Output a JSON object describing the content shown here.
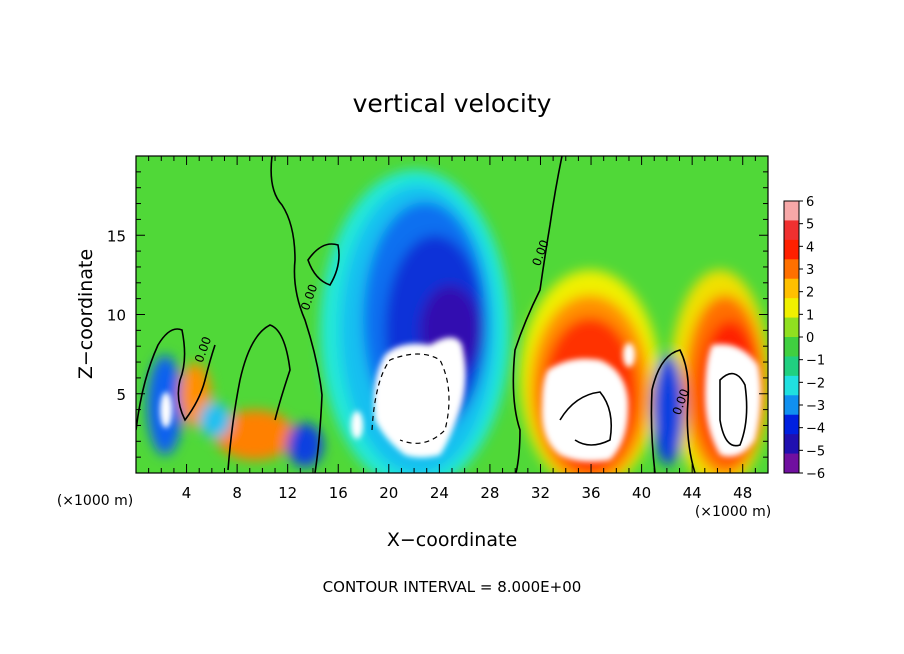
{
  "chart_data": {
    "type": "heatmap",
    "title": "vertical velocity",
    "xlabel": "X−coordinate",
    "ylabel": "Z−coordinate",
    "x_unit_label": "(×1000 m)",
    "y_unit_label": "(×1000 m)",
    "xlim": [
      0,
      50
    ],
    "ylim": [
      0,
      20
    ],
    "x_ticks": [
      4,
      8,
      12,
      16,
      20,
      24,
      28,
      32,
      36,
      40,
      44,
      48
    ],
    "y_ticks": [
      5,
      10,
      15
    ],
    "footer": "CONTOUR INTERVAL = 8.000E+00",
    "contour_labels": [
      {
        "text": "0.00",
        "x": 14.0,
        "y": 11.0
      },
      {
        "text": "0.00",
        "x": 32.3,
        "y": 13.8
      },
      {
        "text": "0.00",
        "x": 5.6,
        "y": 7.7
      },
      {
        "text": "0.00",
        "x": 43.4,
        "y": 4.4
      }
    ],
    "colorbar": {
      "range": [
        -6,
        6
      ],
      "labels": [
        "6",
        "5",
        "4",
        "3",
        "2",
        "1",
        "0",
        "−1",
        "−2",
        "−3",
        "−4",
        "−5",
        "−6"
      ],
      "colors": [
        "#f7a8a8",
        "#f03030",
        "#ff2000",
        "#ff7000",
        "#ffc000",
        "#f0f000",
        "#90e020",
        "#40d040",
        "#20d080",
        "#20e0e0",
        "#1090f0",
        "#0020e0",
        "#2010b0",
        "#7010a0"
      ]
    }
  }
}
